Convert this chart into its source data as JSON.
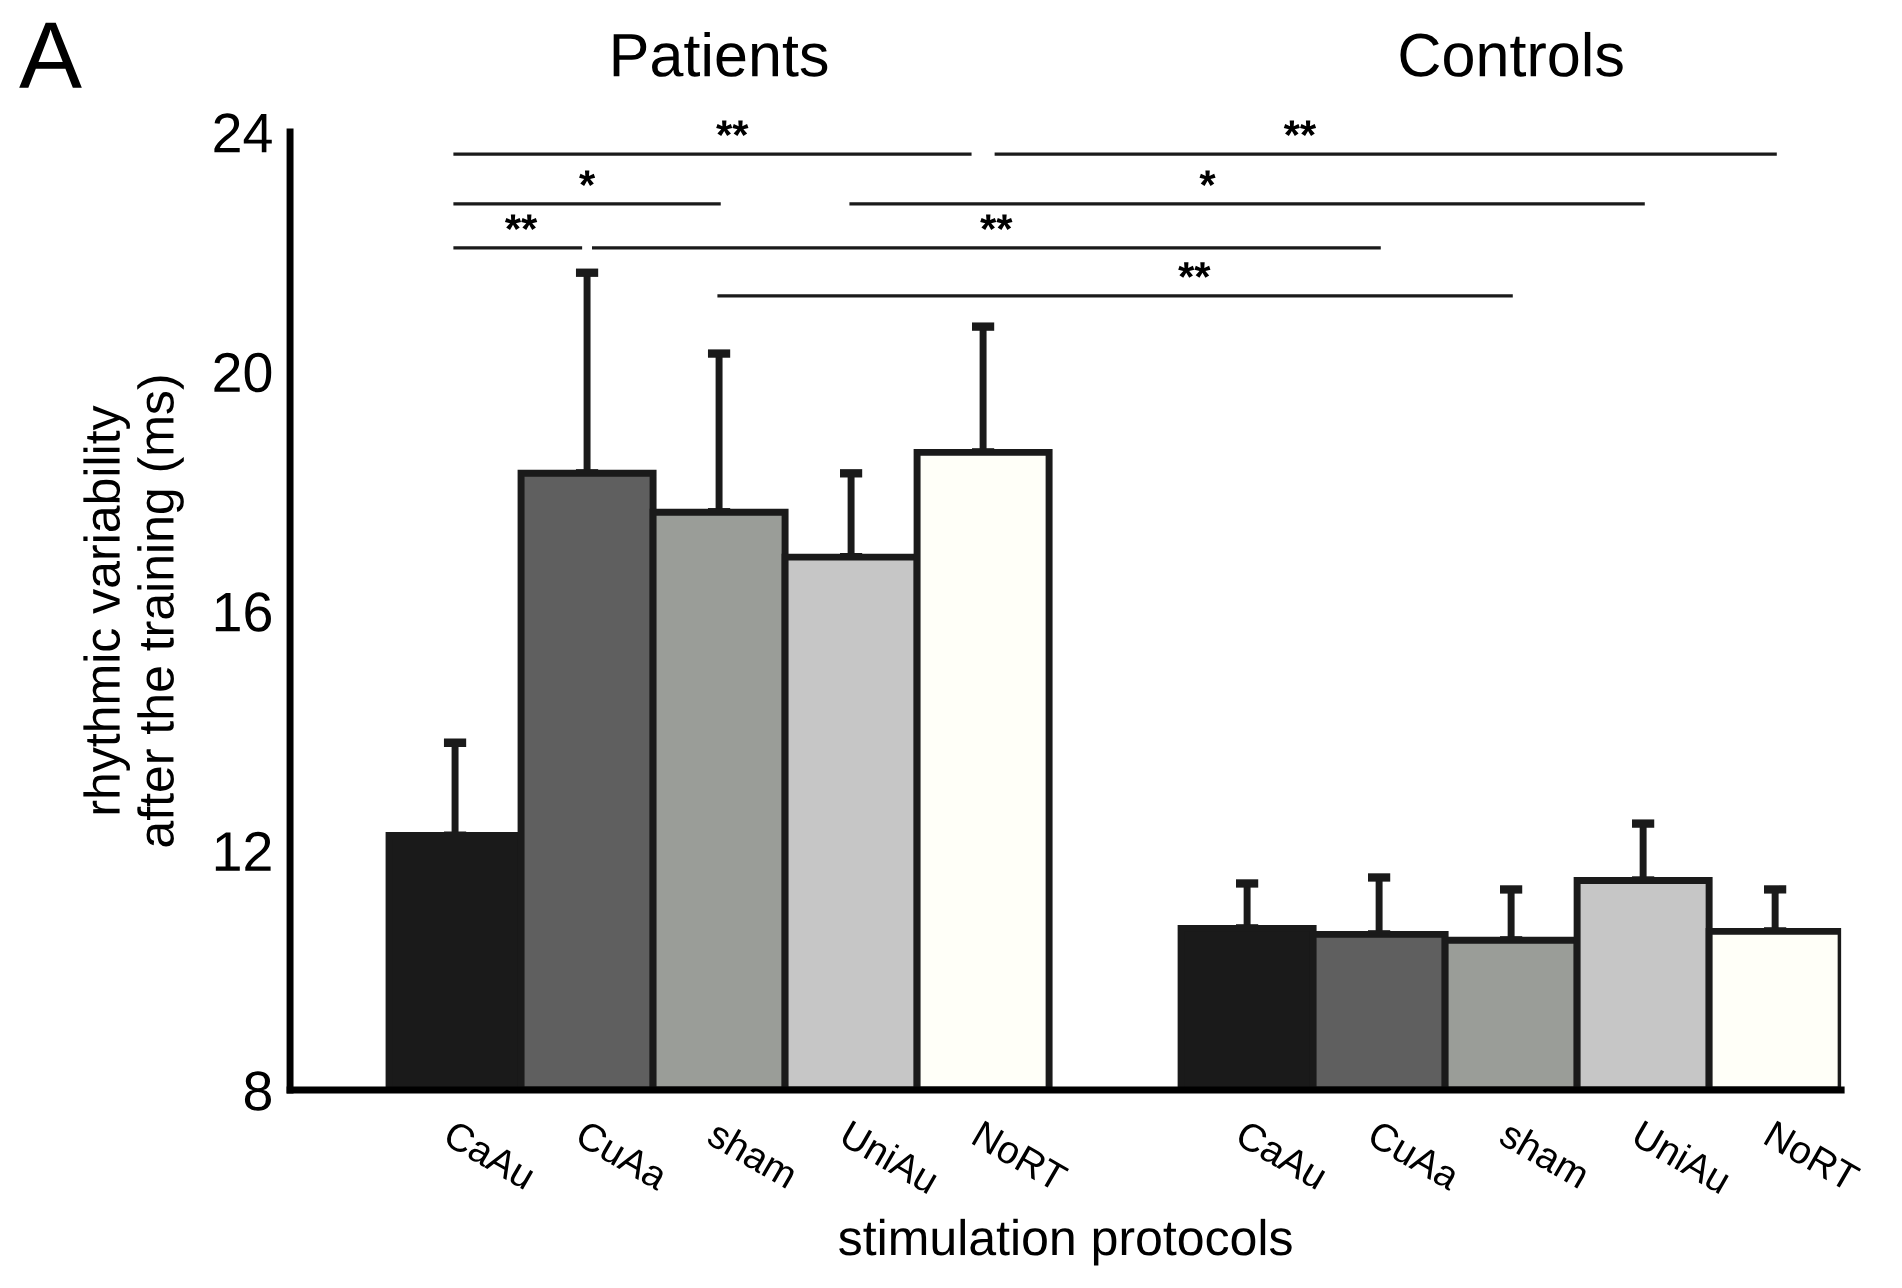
{
  "chart_data": {
    "type": "bar",
    "xlabel": "stimulation protocols",
    "ylabel": "rhythmic variability\nafter the training (ms)",
    "categories": [
      "CaAu",
      "CuAa",
      "sham",
      "UniAu",
      "NoRT",
      null,
      "CaAu",
      "CuAa",
      "sham",
      "UniAu",
      "NoRT"
    ],
    "values": [
      12.25,
      18.3,
      17.65,
      16.9,
      18.65,
      null,
      10.7,
      10.6,
      10.5,
      11.5,
      10.65
    ],
    "errors": [
      [
        12.25,
        13.8
      ],
      [
        18.3,
        21.65
      ],
      [
        17.65,
        20.3
      ],
      [
        16.9,
        18.3
      ],
      [
        18.65,
        20.75
      ],
      null,
      [
        10.7,
        11.45
      ],
      [
        10.6,
        11.55
      ],
      [
        10.5,
        11.35
      ],
      [
        11.5,
        12.45
      ],
      [
        10.65,
        11.35
      ]
    ],
    "colors": [
      "#1a1a1a",
      "#5f5f5f",
      "#9a9d98",
      "#c6c6c6",
      "#fffff8",
      null,
      "#1a1a1a",
      "#5f5f5f",
      "#9a9d98",
      "#c6c6c6",
      "#fffff8"
    ],
    "ylim": [
      8,
      24
    ],
    "yticks": [
      8,
      12,
      16,
      20,
      24
    ],
    "grid": false,
    "legend": false,
    "annotations": [
      "A",
      "Patients",
      "Controls",
      "**",
      "**",
      "*",
      "*",
      "**",
      "**",
      "**"
    ]
  }
}
